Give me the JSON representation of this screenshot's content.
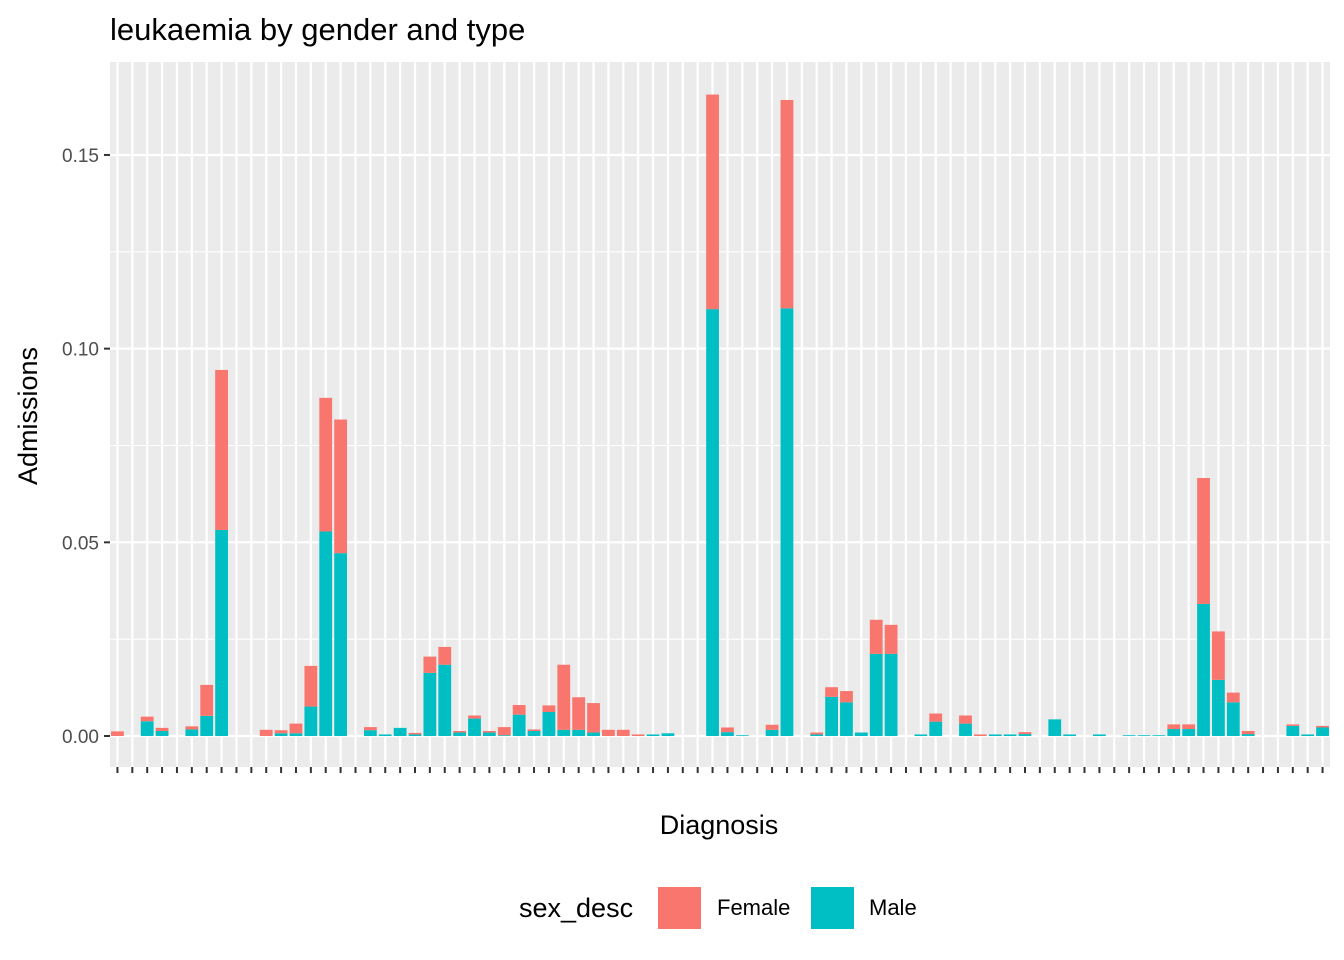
{
  "chart_data": {
    "type": "bar",
    "stacked": true,
    "title": "leukaemia by gender and type",
    "xlabel": "Diagnosis",
    "ylabel": "Admissions",
    "ylim": [
      -0.008,
      0.174
    ],
    "yticks": [
      0.0,
      0.05,
      0.1,
      0.15
    ],
    "ytick_labels": [
      "0.00",
      "0.05",
      "0.10",
      "0.15"
    ],
    "grid": true,
    "legend": {
      "title": "sex_desc",
      "position": "bottom"
    },
    "colors": {
      "Female": "#f8766d",
      "Male": "#00bfc4",
      "panel": "#ebebeb",
      "grid": "#ffffff"
    },
    "categories_count": 82,
    "series": [
      {
        "name": "Male",
        "values": [
          0,
          0,
          0.0038,
          0.0013,
          0,
          0.0017,
          0.0052,
          0.0532,
          0,
          0,
          0,
          0.0007,
          0.0007,
          0.0076,
          0.0528,
          0.0472,
          0,
          0.0015,
          0.0004,
          0.0021,
          0.0004,
          0.0163,
          0.0184,
          0.0009,
          0.0045,
          0.0009,
          0.0002,
          0.0055,
          0.0013,
          0.0062,
          0.0016,
          0.0016,
          0.0009,
          0,
          0,
          0,
          0.0004,
          0.0007,
          0,
          0,
          0.1102,
          0.001,
          0.0002,
          0,
          0.0016,
          0.1104,
          0,
          0.0004,
          0.0101,
          0.0087,
          0.0009,
          0.0212,
          0.0212,
          0,
          0.0004,
          0.0037,
          0,
          0.0032,
          0,
          0.0004,
          0.0004,
          0.0005,
          0,
          0.0043,
          0.0004,
          0,
          0.0004,
          0,
          0.0002,
          0.0002,
          0.0002,
          0.0018,
          0.0018,
          0.0341,
          0.0145,
          0.0087,
          0.0005,
          0,
          0,
          0.0026,
          0.0004,
          0.0022
        ]
      },
      {
        "name": "Female",
        "values": [
          0.0012,
          0,
          0.0012,
          0.0008,
          0,
          0.0008,
          0.008,
          0.0413,
          0,
          0,
          0.0016,
          0.0008,
          0.0025,
          0.0105,
          0.0345,
          0.0345,
          0,
          0.0008,
          0,
          0,
          0.0004,
          0.0042,
          0.0046,
          0.0004,
          0.0008,
          0.0004,
          0.0021,
          0.0025,
          0.0004,
          0.0017,
          0.0168,
          0.0084,
          0.0076,
          0.0016,
          0.0016,
          0.0004,
          0,
          0,
          0,
          0,
          0.0554,
          0.0012,
          0,
          0,
          0.0013,
          0.0538,
          0,
          0.0005,
          0.0025,
          0.0029,
          0,
          0.0088,
          0.0075,
          0,
          0,
          0.0021,
          0,
          0.0021,
          0.0004,
          0,
          0,
          0.0005,
          0,
          0,
          0,
          0,
          0,
          0,
          0,
          0,
          0,
          0.0012,
          0.0012,
          0.0325,
          0.0125,
          0.0025,
          0.0008,
          0,
          0,
          0.0004,
          0,
          0.0004
        ]
      }
    ]
  }
}
